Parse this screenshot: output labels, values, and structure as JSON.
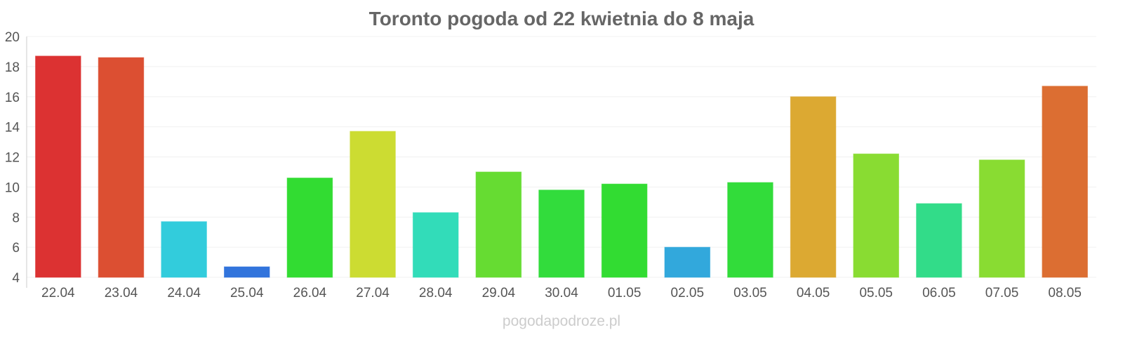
{
  "chart_data": {
    "type": "bar",
    "title": "Toronto pogoda od 22 kwietnia do 8 maja",
    "xlabel": "",
    "ylabel": "",
    "ylim": [
      4,
      20
    ],
    "yticks": [
      "4",
      "6",
      "8",
      "10",
      "12",
      "14",
      "16",
      "18",
      "20"
    ],
    "grid": true,
    "legend": "none",
    "categories": [
      "22.04",
      "23.04",
      "24.04",
      "25.04",
      "26.04",
      "27.04",
      "28.04",
      "29.04",
      "30.04",
      "01.05",
      "02.05",
      "03.05",
      "04.05",
      "05.05",
      "06.05",
      "07.05",
      "08.05"
    ],
    "values": [
      18.7,
      18.6,
      7.7,
      4.7,
      10.6,
      13.7,
      8.3,
      11.0,
      9.8,
      10.2,
      6.0,
      10.3,
      16.0,
      12.2,
      8.9,
      11.8,
      16.7
    ],
    "colors": [
      "#dc3232",
      "#dc4f32",
      "#32ccdc",
      "#3274dc",
      "#32dc32",
      "#ccdc32",
      "#32dcb9",
      "#66dc32",
      "#32dc3c",
      "#32dc32",
      "#32a8dc",
      "#32dc3a",
      "#dca932",
      "#89dc32",
      "#32dc89",
      "#89dc32",
      "#dc6e32"
    ]
  },
  "source": "pogodapodroze.pl"
}
